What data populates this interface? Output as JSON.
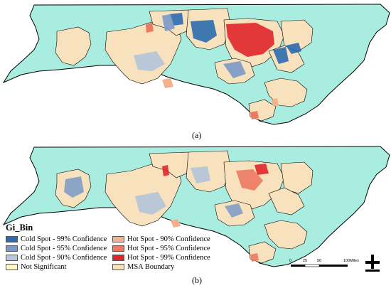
{
  "panels": [
    {
      "label": "(a)"
    },
    {
      "label": "(b)"
    }
  ],
  "legend": {
    "title": "Gi_Bin",
    "items": [
      {
        "label": "Cold Spot - 99% Confidence",
        "color": "#2b6cb0"
      },
      {
        "label": "Cold Spot - 95% Confidence",
        "color": "#7a99c7"
      },
      {
        "label": "Cold Spot - 90% Confidence",
        "color": "#b9c7d6"
      },
      {
        "label": "Not Significant",
        "color": "#fffbc8"
      },
      {
        "label": "Hot Spot - 90% Confidence",
        "color": "#f3b28c"
      },
      {
        "label": "Hot Spot - 95% Confidence",
        "color": "#ec7a62"
      },
      {
        "label": "Hot Spot - 99% Confidence",
        "color": "#e0262a"
      },
      {
        "label": "MSA Boundary",
        "color": "#f8e2bd"
      }
    ]
  },
  "scale_bar": {
    "ticks": [
      "0",
      "25",
      "50",
      "100"
    ],
    "unit": "Miles"
  },
  "colors": {
    "state_fill": "#a8ede0",
    "msa_fill": "#f8e2bd",
    "outline": "#000000"
  },
  "icons": {
    "north_arrow": "north-arrow-icon"
  }
}
